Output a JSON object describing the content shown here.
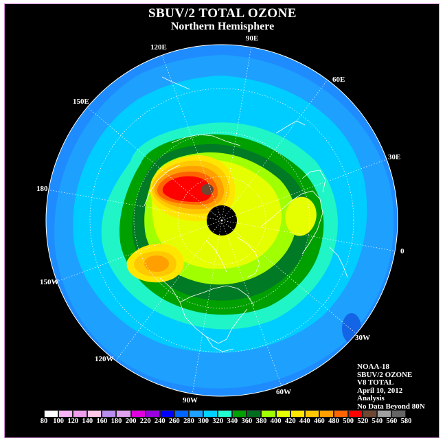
{
  "header": {
    "title": "SBUV/2 TOTAL OZONE",
    "subtitle": "Northern Hemisphere"
  },
  "longitude_labels": [
    {
      "id": "90e",
      "text": "90E"
    },
    {
      "id": "60e",
      "text": "60E"
    },
    {
      "id": "30e",
      "text": "30E"
    },
    {
      "id": "0",
      "text": "0"
    },
    {
      "id": "30w",
      "text": "30W"
    },
    {
      "id": "60w",
      "text": "60W"
    },
    {
      "id": "90w",
      "text": "90W"
    },
    {
      "id": "120w",
      "text": "120W"
    },
    {
      "id": "150w",
      "text": "150W"
    },
    {
      "id": "180",
      "text": "180"
    },
    {
      "id": "150e",
      "text": "150E"
    },
    {
      "id": "120e",
      "text": "120E"
    }
  ],
  "info_block": {
    "lines": [
      "NOAA-18",
      "SBUV/2 OZONE",
      "V8 TOTAL",
      "April 10, 2012",
      "Analysis",
      "No Data Beyond 80N"
    ]
  },
  "color_scale": {
    "ticks": [
      "80",
      "100",
      "120",
      "140",
      "160",
      "180",
      "200",
      "220",
      "240",
      "260",
      "280",
      "300",
      "320",
      "340",
      "360",
      "380",
      "400",
      "420",
      "440",
      "460",
      "480",
      "500",
      "520",
      "540",
      "560",
      "580"
    ],
    "colors": [
      "#ffffff",
      "#f7b4f7",
      "#f09ff0",
      "#ffc8e8",
      "#b98cf0",
      "#e0a0f0",
      "#e000e0",
      "#9a00e0",
      "#0000ff",
      "#0064ff",
      "#1ea0ff",
      "#00d2ff",
      "#20ffd0",
      "#00a000",
      "#006e1e",
      "#a0ff00",
      "#e6ff00",
      "#ffe600",
      "#ffc800",
      "#ffa000",
      "#ff6400",
      "#ff0000",
      "#6e4632",
      "#a0a0a0",
      "#646464"
    ]
  }
}
